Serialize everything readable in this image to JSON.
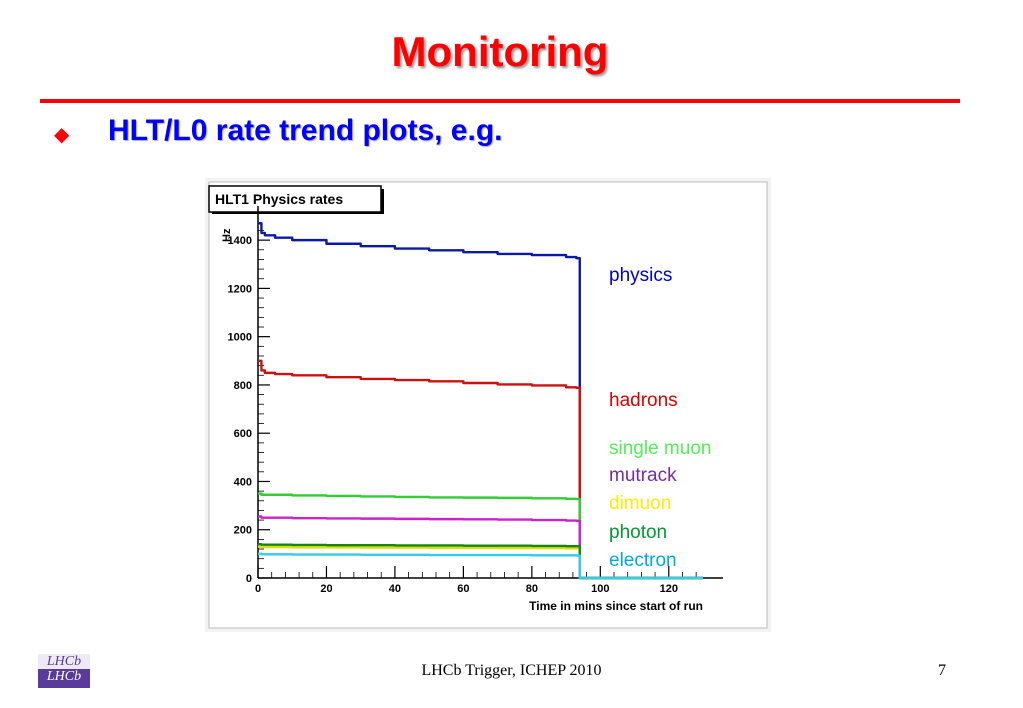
{
  "slide": {
    "title": "Monitoring",
    "bullet": "HLT/L0 rate trend plots, e.g.",
    "bullet_glyph": "◆",
    "footer": "LHCb Trigger, ICHEP 2010",
    "page_number": "7",
    "logo_text": "LHCb",
    "accent_color": "#ff0000",
    "bullet_color": "#0000ff"
  },
  "chart_data": {
    "type": "line",
    "title": "HLT1 Physics rates",
    "xlabel": "Time in mins since start of run",
    "ylabel": "Hz",
    "xlim": [
      0,
      130
    ],
    "ylim": [
      0,
      1500
    ],
    "xticks": [
      0,
      20,
      40,
      60,
      80,
      100,
      120
    ],
    "yticks": [
      0,
      200,
      400,
      600,
      800,
      1000,
      1200,
      1400
    ],
    "grid": false,
    "legend_position": "right",
    "series": [
      {
        "name": "physics",
        "color": "#0a1aa6",
        "label_color": "#0000cc",
        "x": [
          0,
          1,
          2,
          5,
          10,
          20,
          30,
          40,
          50,
          60,
          70,
          80,
          90,
          93,
          94,
          130
        ],
        "y": [
          1470,
          1430,
          1420,
          1410,
          1400,
          1385,
          1375,
          1365,
          1358,
          1350,
          1343,
          1338,
          1330,
          1325,
          0,
          0
        ]
      },
      {
        "name": "hadrons",
        "color": "#cc1111",
        "label_color": "#dd0000",
        "x": [
          0,
          1,
          2,
          5,
          10,
          20,
          30,
          40,
          50,
          60,
          70,
          80,
          90,
          93,
          94,
          130
        ],
        "y": [
          900,
          860,
          850,
          845,
          840,
          832,
          825,
          820,
          815,
          808,
          802,
          798,
          790,
          788,
          0,
          0
        ]
      },
      {
        "name": "single muon",
        "color": "#33cc33",
        "label_color": "#55ee55",
        "x": [
          0,
          1,
          10,
          20,
          30,
          40,
          50,
          60,
          70,
          80,
          90,
          93,
          94,
          130
        ],
        "y": [
          350,
          345,
          342,
          340,
          338,
          336,
          334,
          333,
          332,
          330,
          328,
          327,
          0,
          0
        ]
      },
      {
        "name": "mutrack",
        "color": "#cc22cc",
        "label_color": "#7030a0",
        "x": [
          0,
          1,
          10,
          20,
          30,
          40,
          50,
          60,
          70,
          80,
          90,
          93,
          94,
          130
        ],
        "y": [
          255,
          250,
          248,
          247,
          246,
          245,
          244,
          243,
          242,
          240,
          238,
          237,
          0,
          0
        ]
      },
      {
        "name": "dimuon",
        "color": "#dddd00",
        "label_color": "#ffee00",
        "x": [
          0,
          1,
          10,
          20,
          30,
          40,
          50,
          60,
          70,
          80,
          90,
          93,
          94,
          130
        ],
        "y": [
          130,
          128,
          127,
          127,
          126,
          126,
          125,
          125,
          124,
          124,
          123,
          123,
          0,
          0
        ]
      },
      {
        "name": "photon",
        "color": "#118811",
        "label_color": "#009933",
        "x": [
          0,
          1,
          10,
          20,
          30,
          40,
          50,
          60,
          70,
          80,
          90,
          93,
          94,
          130
        ],
        "y": [
          140,
          138,
          137,
          136,
          136,
          135,
          135,
          134,
          134,
          133,
          132,
          132,
          0,
          0
        ]
      },
      {
        "name": "electron",
        "color": "#33ccee",
        "label_color": "#00aadd",
        "x": [
          0,
          1,
          10,
          20,
          30,
          40,
          50,
          60,
          70,
          80,
          90,
          93,
          94,
          130
        ],
        "y": [
          100,
          98,
          97,
          97,
          96,
          96,
          95,
          95,
          95,
          94,
          94,
          93,
          0,
          0
        ]
      }
    ]
  }
}
